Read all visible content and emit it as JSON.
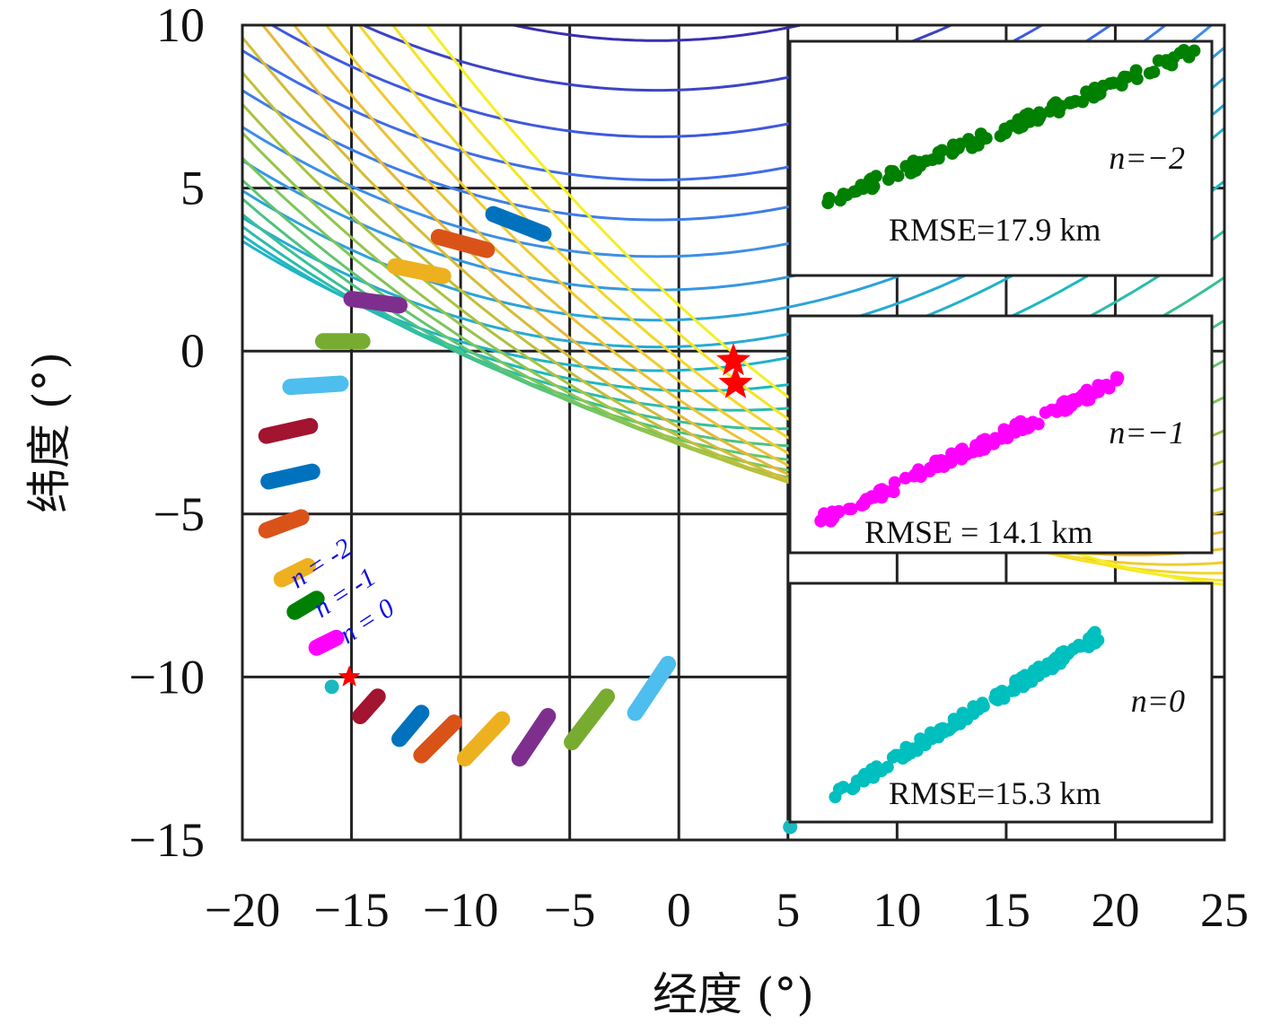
{
  "chart_data": {
    "type": "line",
    "xlabel": "经度 (°)",
    "ylabel": "纬度 (°)",
    "xlim": [
      -20,
      25
    ],
    "ylim": [
      -15,
      10
    ],
    "x_ticks": [
      "−20",
      "−15",
      "−10",
      "−5",
      "0",
      "5",
      "10",
      "15",
      "20",
      "25"
    ],
    "y_ticks": [
      "10",
      "5",
      "0",
      "−5",
      "−10",
      "−15"
    ],
    "grid": true,
    "contour_levels": [
      -9,
      -8,
      -7,
      -6,
      -5,
      -4,
      -3,
      -2,
      -1,
      0,
      1,
      2,
      3,
      4,
      5,
      6,
      7,
      8,
      9,
      10,
      11,
      12,
      13,
      14,
      15,
      16
    ],
    "colormap": [
      "#3b2fb0",
      "#4063e8",
      "#3d8ee6",
      "#28a8d6",
      "#1cb8c0",
      "#3ec28c",
      "#7cc65a",
      "#b6c138",
      "#e6b838",
      "#f4d02a",
      "#f5ef24"
    ],
    "track_segments": [
      {
        "color": "#0072bd",
        "x": [
          -8.5,
          -6.2
        ],
        "y": [
          4.2,
          3.6
        ]
      },
      {
        "color": "#d95319",
        "x": [
          -11.0,
          -8.8
        ],
        "y": [
          3.5,
          3.1
        ]
      },
      {
        "color": "#edb120",
        "x": [
          -13.0,
          -10.8
        ],
        "y": [
          2.6,
          2.3
        ]
      },
      {
        "color": "#7e2f8e",
        "x": [
          -15.0,
          -12.8
        ],
        "y": [
          1.6,
          1.4
        ]
      },
      {
        "color": "#77ac30",
        "x": [
          -16.3,
          -14.5
        ],
        "y": [
          0.3,
          0.3
        ]
      },
      {
        "color": "#4dbeee",
        "x": [
          -17.8,
          -15.5
        ],
        "y": [
          -1.1,
          -1.0
        ]
      },
      {
        "color": "#a2142f",
        "x": [
          -18.9,
          -16.9
        ],
        "y": [
          -2.6,
          -2.3
        ]
      },
      {
        "color": "#0072bd",
        "x": [
          -18.8,
          -16.8
        ],
        "y": [
          -4.0,
          -3.7
        ]
      },
      {
        "color": "#d95319",
        "x": [
          -18.9,
          -17.3
        ],
        "y": [
          -5.5,
          -5.1
        ]
      },
      {
        "color": "#edb120",
        "x": [
          -18.2,
          -17.0
        ],
        "y": [
          -7.0,
          -6.6
        ]
      },
      {
        "color": "#008000",
        "x": [
          -17.6,
          -16.6
        ],
        "y": [
          -8.0,
          -7.6
        ]
      },
      {
        "color": "#ff00ff",
        "x": [
          -16.6,
          -15.7
        ],
        "y": [
          -9.1,
          -8.8
        ]
      },
      {
        "color": "#a2142f",
        "x": [
          -14.6,
          -13.8
        ],
        "y": [
          -11.2,
          -10.6
        ]
      },
      {
        "color": "#0072bd",
        "x": [
          -12.8,
          -11.8
        ],
        "y": [
          -11.9,
          -11.1
        ]
      },
      {
        "color": "#d95319",
        "x": [
          -11.8,
          -10.3
        ],
        "y": [
          -12.4,
          -11.4
        ]
      },
      {
        "color": "#edb120",
        "x": [
          -9.8,
          -8.1
        ],
        "y": [
          -12.5,
          -11.3
        ]
      },
      {
        "color": "#7e2f8e",
        "x": [
          -7.3,
          -6.0
        ],
        "y": [
          -12.5,
          -11.2
        ]
      },
      {
        "color": "#77ac30",
        "x": [
          -4.9,
          -3.3
        ],
        "y": [
          -12.0,
          -10.6
        ]
      },
      {
        "color": "#4dbeee",
        "x": [
          -2.0,
          -0.5
        ],
        "y": [
          -11.1,
          -9.6
        ]
      }
    ],
    "stars": [
      {
        "x": 2.5,
        "y": -0.3
      },
      {
        "x": 2.6,
        "y": -1.0
      },
      {
        "x": -15.1,
        "y": -10.0
      }
    ],
    "cyan_points": [
      {
        "x": -15.9,
        "y": -10.3
      },
      {
        "x": 5.1,
        "y": -14.6
      }
    ],
    "n_labels": [
      {
        "text": "n = -2",
        "x": -17.5,
        "y": -7.3
      },
      {
        "text": "n = -1",
        "x": -16.4,
        "y": -8.2
      },
      {
        "text": "n = 0",
        "x": -15.2,
        "y": -9.0
      }
    ],
    "insets": [
      {
        "label": "n=−2",
        "rmse": "RMSE=17.9 km",
        "color": "#008000",
        "x_range": [
          6.5,
          24
        ],
        "y_range": [
          4.5,
          9.3
        ]
      },
      {
        "label": "n=−1",
        "rmse": "RMSE = 14.1 km",
        "color": "#ff00ff",
        "x_range": [
          6.5,
          20.5
        ],
        "y_range": [
          -5.2,
          -0.8
        ]
      },
      {
        "label": "n=0",
        "rmse": "RMSE=15.3 km",
        "color": "#00bfbf",
        "x_range": [
          6.5,
          19.3
        ],
        "y_range": [
          -13.9,
          -8.7
        ]
      }
    ]
  }
}
